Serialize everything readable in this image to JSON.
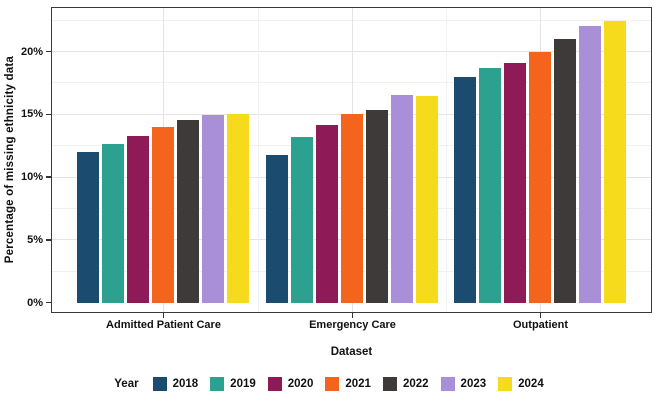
{
  "chart_data": {
    "type": "bar",
    "title": "",
    "xlabel": "Dataset",
    "ylabel": "Percentage of missing ethnicity data",
    "legend_title": "Year",
    "legend_position": "bottom",
    "grid": "major and minor horizontal light-gray gridlines, white panel, dark panel border",
    "categories": [
      "Admitted Patient Care",
      "Emergency Care",
      "Outpatient"
    ],
    "series": [
      {
        "name": "2018",
        "color": "#1b4c70",
        "values": [
          12.0,
          11.8,
          18.0
        ]
      },
      {
        "name": "2019",
        "color": "#2da190",
        "values": [
          12.7,
          13.2,
          18.7
        ]
      },
      {
        "name": "2020",
        "color": "#8e1a57",
        "values": [
          13.3,
          14.2,
          19.1
        ]
      },
      {
        "name": "2021",
        "color": "#f4641d",
        "values": [
          14.0,
          15.1,
          20.0
        ]
      },
      {
        "name": "2022",
        "color": "#3d3a39",
        "values": [
          14.6,
          15.4,
          21.0
        ]
      },
      {
        "name": "2023",
        "color": "#a98fd7",
        "values": [
          15.0,
          16.6,
          22.1
        ]
      },
      {
        "name": "2024",
        "color": "#f6da1c",
        "values": [
          15.1,
          16.5,
          22.5
        ]
      }
    ],
    "y_ticks": [
      {
        "label": "0%",
        "value": 0
      },
      {
        "label": "5%",
        "value": 5
      },
      {
        "label": "10%",
        "value": 10
      },
      {
        "label": "15%",
        "value": 15
      },
      {
        "label": "20%",
        "value": 20
      }
    ],
    "y_minor_step": 2.5,
    "ylim": [
      0,
      23.5
    ]
  }
}
